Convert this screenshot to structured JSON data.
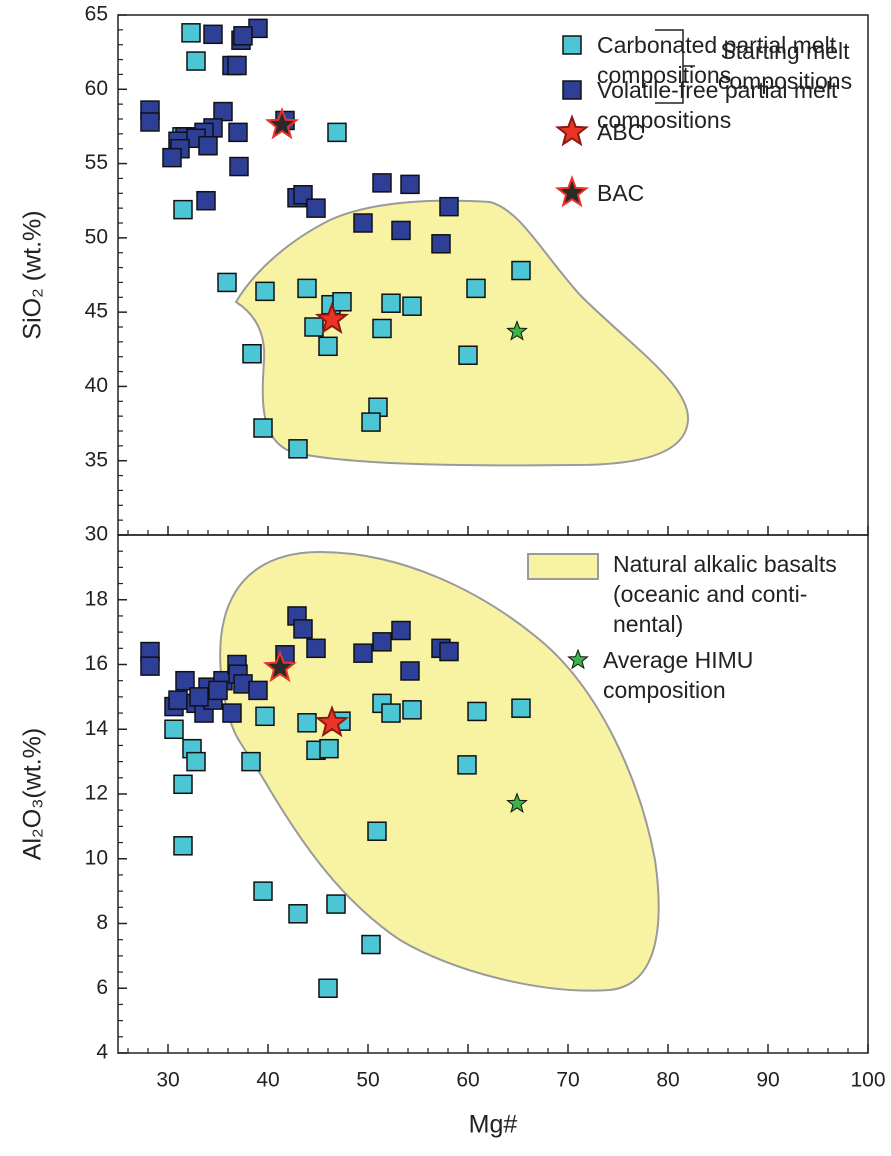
{
  "chart_data": [
    {
      "type": "scatter",
      "ylabel": "SiO₂ (wt.%)",
      "xlim": [
        25,
        100
      ],
      "ylim": [
        30,
        65
      ],
      "yticks": [
        30,
        35,
        40,
        45,
        50,
        55,
        60,
        65
      ],
      "region": {
        "color": "#f8f3a3"
      },
      "legend_note": "Starting melt compositions",
      "series": [
        {
          "name": "Carbonated partial melt compositions",
          "color": "#4cc5d5",
          "edgecolor": "#111111",
          "marker": "square",
          "x": [
            32.3,
            32.8,
            31.5,
            35.9,
            39.7,
            43.9,
            38.4,
            39.5,
            43.0,
            44.6,
            46.0,
            46.3,
            47.4,
            46.9,
            51.4,
            52.3,
            54.4,
            51.0,
            50.3,
            60.0,
            60.8,
            65.3,
            31.4
          ],
          "values": [
            63.8,
            61.9,
            51.9,
            47.0,
            46.4,
            46.6,
            42.2,
            37.2,
            35.8,
            44.0,
            42.7,
            45.5,
            45.7,
            57.1,
            43.9,
            45.6,
            45.4,
            38.6,
            37.6,
            42.1,
            46.6,
            47.8,
            56.8
          ]
        },
        {
          "name": "Volatile-free partial melt compositions",
          "color": "#2e3f97",
          "edgecolor": "#111111",
          "marker": "square",
          "x": [
            28.2,
            28.2,
            34.5,
            39.0,
            37.3,
            37.5,
            36.4,
            36.9,
            35.5,
            34.5,
            33.6,
            31.7,
            32.8,
            31.0,
            31.2,
            30.4,
            34.0,
            37.0,
            37.1,
            33.8,
            41.7,
            42.9,
            43.5,
            44.8,
            49.5,
            51.4,
            54.2,
            53.3,
            58.1,
            57.3
          ],
          "values": [
            58.6,
            57.8,
            63.7,
            64.1,
            63.3,
            63.6,
            61.6,
            61.6,
            58.5,
            57.4,
            57.1,
            56.8,
            56.7,
            56.5,
            56.0,
            55.4,
            56.2,
            57.1,
            54.8,
            52.5,
            57.9,
            52.7,
            52.9,
            52.0,
            51.0,
            53.7,
            53.6,
            50.5,
            52.1,
            49.6
          ]
        },
        {
          "name": "ABC",
          "color": "#ec3325",
          "edgecolor": "#8a1a12",
          "marker": "star",
          "x": [
            46.4
          ],
          "values": [
            44.5
          ]
        },
        {
          "name": "BAC",
          "color": "#2a2a2a",
          "edgecolor": "#ec3325",
          "marker": "star",
          "x": [
            41.4
          ],
          "values": [
            57.6
          ]
        },
        {
          "color": "#3bb54a",
          "edgecolor": "#111111",
          "marker": "small-star",
          "x": [
            64.9
          ],
          "values": [
            43.7
          ]
        }
      ]
    },
    {
      "type": "scatter",
      "xlabel": "Mg#",
      "ylabel": "Al₂O₃(wt.%)",
      "xlim": [
        25,
        100
      ],
      "xticks": [
        30,
        40,
        50,
        60,
        70,
        80,
        90,
        100
      ],
      "ylim": [
        4,
        20
      ],
      "yticks": [
        4,
        6,
        8,
        10,
        12,
        14,
        16,
        18
      ],
      "region": {
        "name": "Natural alkalic basalts (oceanic and conti­nental)",
        "color": "#f8f3a3"
      },
      "series": [
        {
          "color": "#4cc5d5",
          "edgecolor": "#111111",
          "marker": "square",
          "x": [
            30.6,
            32.4,
            32.8,
            31.5,
            31.5,
            39.7,
            38.3,
            39.5,
            43.0,
            46.8,
            44.8,
            46.1,
            43.9,
            47.3,
            51.4,
            52.3,
            54.4,
            50.9,
            50.3,
            46.0,
            59.9,
            60.9,
            65.3
          ],
          "values": [
            14.0,
            13.4,
            13.0,
            12.3,
            10.4,
            14.4,
            13.0,
            9.0,
            8.3,
            8.6,
            13.35,
            13.4,
            14.2,
            14.25,
            14.8,
            14.5,
            14.6,
            10.85,
            7.35,
            6.0,
            12.9,
            14.55,
            14.65
          ]
        },
        {
          "color": "#2e3f97",
          "edgecolor": "#111111",
          "marker": "square",
          "x": [
            28.2,
            28.2,
            30.6,
            31.0,
            31.7,
            32.8,
            33.6,
            34.0,
            34.5,
            35.5,
            36.4,
            36.9,
            37.0,
            37.5,
            39.0,
            41.7,
            42.9,
            43.5,
            44.8,
            49.5,
            51.4,
            53.3,
            54.2,
            57.3,
            58.1,
            33.1,
            35.0
          ],
          "values": [
            16.4,
            15.95,
            14.7,
            14.9,
            15.5,
            14.8,
            14.5,
            15.3,
            14.9,
            15.5,
            14.5,
            16.0,
            15.7,
            15.4,
            15.2,
            16.3,
            17.5,
            17.1,
            16.5,
            16.35,
            16.7,
            17.05,
            15.8,
            16.5,
            16.4,
            15.0,
            15.2
          ]
        },
        {
          "color": "#ec3325",
          "edgecolor": "#8a1a12",
          "marker": "star",
          "x": [
            46.4
          ],
          "values": [
            14.2
          ]
        },
        {
          "color": "#2a2a2a",
          "edgecolor": "#ec3325",
          "marker": "star",
          "x": [
            41.2
          ],
          "values": [
            15.9
          ]
        },
        {
          "name": "Average HIMU composition",
          "color": "#3bb54a",
          "edgecolor": "#111111",
          "marker": "small-star",
          "x": [
            64.9
          ],
          "values": [
            11.7
          ]
        }
      ]
    }
  ]
}
